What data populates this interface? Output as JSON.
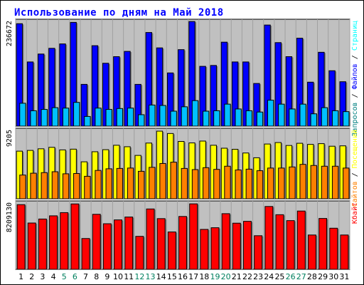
{
  "title": "Использование по дням на Май 2018",
  "colors": {
    "title": "#0000ff",
    "panel_bg": "#c0c0c0",
    "grid": "#a0a0a0",
    "hits": "#0000ff",
    "files": "#00c0ff",
    "visits": "#ffff00",
    "sites": "#ff8000",
    "kbytes": "#ff0000",
    "day_default": "#000000",
    "day_weekend": "#00805f",
    "pages": "#00ffff"
  },
  "chart_data": [
    {
      "type": "bar",
      "name": "hits-files-panel",
      "categories": [
        "1",
        "2",
        "3",
        "4",
        "5",
        "6",
        "7",
        "8",
        "9",
        "10",
        "11",
        "12",
        "13",
        "14",
        "15",
        "16",
        "17",
        "18",
        "19",
        "20",
        "21",
        "22",
        "23",
        "24",
        "25",
        "26",
        "27",
        "28",
        "29",
        "30",
        "31"
      ],
      "weekend_days": [
        "5",
        "6",
        "12",
        "13",
        "19",
        "20",
        "26",
        "27"
      ],
      "y_max_label": "236672",
      "ylim": [
        0,
        236672
      ],
      "series": [
        {
          "name": "Запросов",
          "color": "#0000ff",
          "values": [
            233000,
            146000,
            164000,
            177000,
            187000,
            236000,
            95000,
            183000,
            143000,
            158000,
            170000,
            95000,
            213000,
            178000,
            121000,
            174000,
            238000,
            136000,
            138000,
            191000,
            146000,
            146000,
            97000,
            230000,
            190000,
            158000,
            200000,
            100000,
            168000,
            126000,
            101000
          ]
        },
        {
          "name": "Файлов",
          "color": "#00c0ff",
          "values": [
            52000,
            35000,
            38000,
            42000,
            41000,
            54000,
            22000,
            41000,
            38000,
            40000,
            41000,
            26000,
            48000,
            47000,
            34000,
            44000,
            58000,
            34000,
            35000,
            50000,
            39000,
            35000,
            32000,
            59000,
            50000,
            39000,
            50000,
            28000,
            42000,
            35000,
            33000
          ]
        }
      ],
      "label_pairs": [
        {
          "text": "Запросов",
          "color": "#008080"
        },
        {
          "text": "/",
          "color": "#000000"
        },
        {
          "text": "Файлов",
          "color": "#0000ff"
        },
        {
          "text": "/",
          "color": "#000000"
        },
        {
          "text": "Страниц",
          "color": "#00ffff"
        }
      ]
    },
    {
      "type": "bar",
      "name": "visits-sites-panel",
      "categories": [
        "1",
        "2",
        "3",
        "4",
        "5",
        "6",
        "7",
        "8",
        "9",
        "10",
        "11",
        "12",
        "13",
        "14",
        "15",
        "16",
        "17",
        "18",
        "19",
        "20",
        "21",
        "22",
        "23",
        "24",
        "25",
        "26",
        "27",
        "28",
        "29",
        "30",
        "31"
      ],
      "y_max_label": "9205",
      "ylim": [
        0,
        9205
      ],
      "series": [
        {
          "name": "Посещений",
          "color": "#ffff00",
          "values": [
            6480,
            6580,
            6800,
            7000,
            6650,
            6750,
            5030,
            6400,
            6680,
            7280,
            7080,
            5900,
            7580,
            9200,
            8880,
            7800,
            7600,
            7850,
            7280,
            6880,
            6730,
            6230,
            5580,
            7450,
            7650,
            7250,
            7550,
            7400,
            7500,
            7150,
            7200
          ]
        },
        {
          "name": "Сайтов",
          "color": "#ff8000",
          "values": [
            3230,
            3480,
            3560,
            3680,
            3400,
            3440,
            3060,
            3860,
            4080,
            4130,
            4180,
            3740,
            4280,
            4800,
            4980,
            4130,
            3970,
            4230,
            4000,
            4430,
            3920,
            4030,
            3820,
            4180,
            4180,
            4330,
            4680,
            4530,
            4430,
            4430,
            4180
          ]
        }
      ],
      "label_pairs": [
        {
          "text": "Сайтов",
          "color": "#ff8000"
        },
        {
          "text": "/",
          "color": "#000000"
        },
        {
          "text": "Посещений",
          "color": "#ffff00"
        }
      ]
    },
    {
      "type": "bar",
      "name": "kbytes-panel",
      "categories": [
        "1",
        "2",
        "3",
        "4",
        "5",
        "6",
        "7",
        "8",
        "9",
        "10",
        "11",
        "12",
        "13",
        "14",
        "15",
        "16",
        "17",
        "18",
        "19",
        "20",
        "21",
        "22",
        "23",
        "24",
        "25",
        "26",
        "27",
        "28",
        "29",
        "30",
        "31"
      ],
      "y_max_label": "8209130",
      "ylim": [
        0,
        8209130
      ],
      "series": [
        {
          "name": "Кбайт",
          "color": "#ff0000",
          "values": [
            8100000,
            5800000,
            6300000,
            6700000,
            7100000,
            8190000,
            3860000,
            6890000,
            5710000,
            6190000,
            6550000,
            4130000,
            7560000,
            6350000,
            4680000,
            6620000,
            8200000,
            5000000,
            5210000,
            6970000,
            5780000,
            6010000,
            4210000,
            7870000,
            6840000,
            6100000,
            7300000,
            4300000,
            6370000,
            5150000,
            4300000
          ]
        }
      ],
      "label_pairs": [
        {
          "text": "Кбайт",
          "color": "#ff0000"
        }
      ]
    }
  ]
}
